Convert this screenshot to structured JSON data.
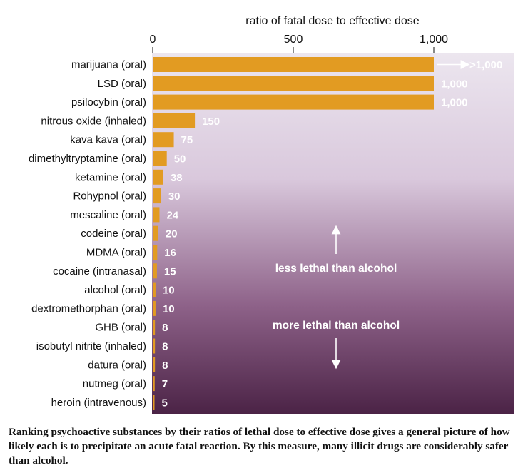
{
  "chart_data": {
    "type": "bar",
    "orientation": "horizontal",
    "xlabel": "ratio of fatal dose to effective dose",
    "xlim": [
      0,
      1000
    ],
    "xticks": [
      0,
      500,
      1000
    ],
    "xtick_labels": [
      "0",
      "500",
      "1,000"
    ],
    "categories": [
      "marijuana (oral)",
      "LSD (oral)",
      "psilocybin (oral)",
      "nitrous oxide (inhaled)",
      "kava kava (oral)",
      "dimethyltryptamine (oral)",
      "ketamine (oral)",
      "Rohypnol (oral)",
      "mescaline (oral)",
      "codeine (oral)",
      "MDMA (oral)",
      "cocaine (intranasal)",
      "alcohol (oral)",
      "dextromethorphan (oral)",
      "GHB (oral)",
      "isobutyl nitrite (inhaled)",
      "datura (oral)",
      "nutmeg (oral)",
      "heroin (intravenous)"
    ],
    "values": [
      1000,
      1000,
      1000,
      150,
      75,
      50,
      38,
      30,
      24,
      20,
      16,
      15,
      10,
      10,
      8,
      8,
      8,
      7,
      5
    ],
    "value_labels": [
      ">1,000",
      "1,000",
      "1,000",
      "150",
      "75",
      "50",
      "38",
      "30",
      "24",
      "20",
      "16",
      "15",
      "10",
      "10",
      "8",
      "8",
      "8",
      "7",
      "5"
    ],
    "annotations": {
      "upper": "less lethal than alcohol",
      "lower": "more lethal than alcohol"
    },
    "colors": {
      "bar": "#e29b22",
      "background_top": "#ece6ef",
      "background_bottom": "#4b2346"
    }
  },
  "caption": "Ranking psychoactive substances by their ratios of lethal dose to effective dose gives a general picture of how likely each is to precipitate an acute fatal reaction. By this measure, many illicit drugs are considerably safer than alcohol."
}
